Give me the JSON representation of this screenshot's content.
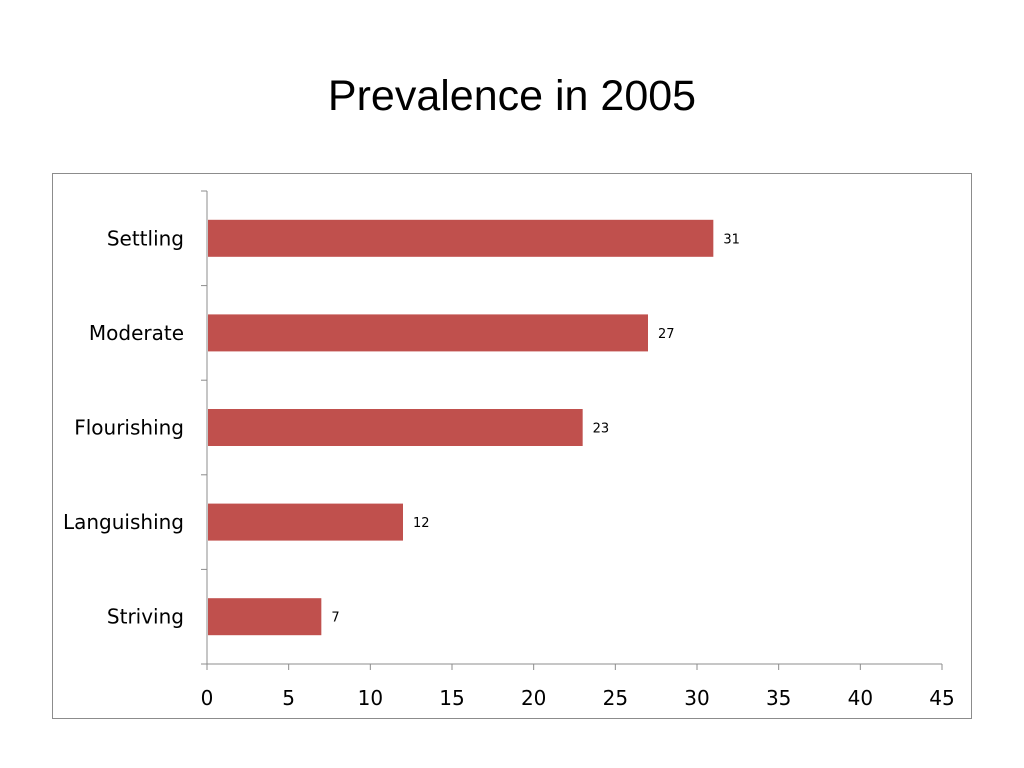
{
  "title": "Prevalence in 2005",
  "chart_data": {
    "type": "bar",
    "orientation": "horizontal",
    "title": "Prevalence in 2005",
    "categories": [
      "Settling",
      "Moderate",
      "Flourishing",
      "Languishing",
      "Striving"
    ],
    "values": [
      31,
      27,
      23,
      12,
      7
    ],
    "data_labels": [
      "31",
      "27",
      "23",
      "12",
      "7"
    ],
    "xlim": [
      0,
      45
    ],
    "xticks": [
      0,
      5,
      10,
      15,
      20,
      25,
      30,
      35,
      40,
      45
    ],
    "xlabel": "",
    "ylabel": "",
    "grid": false,
    "legend": "none",
    "bar_color": "#C0504D"
  }
}
